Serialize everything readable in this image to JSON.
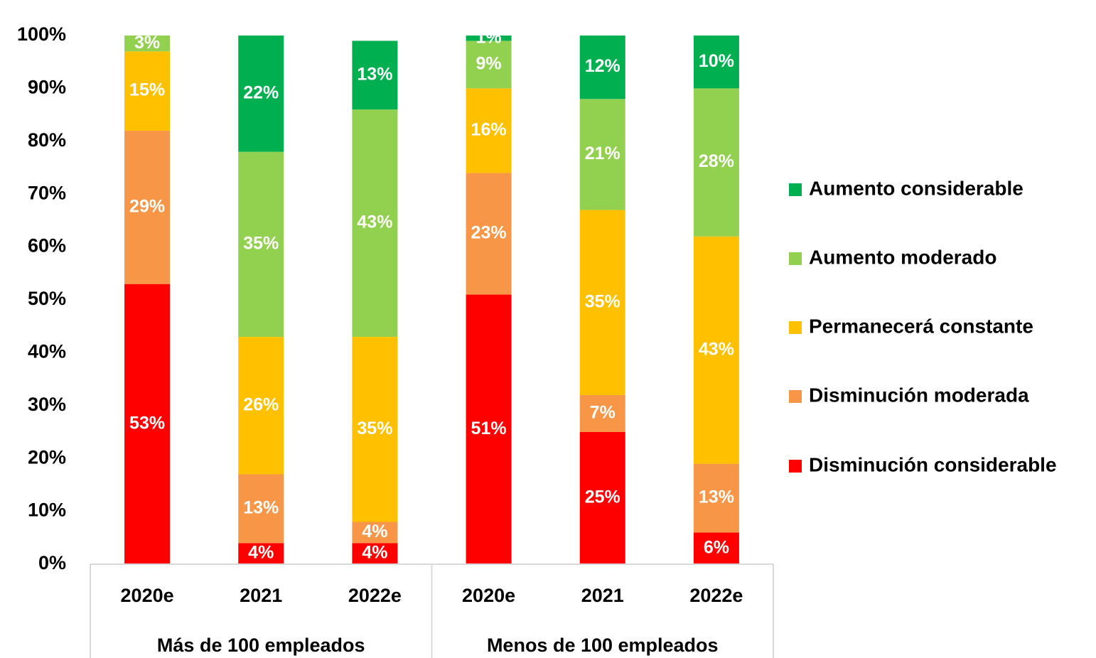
{
  "chart_data": {
    "type": "stacked_bar",
    "categories": [
      "2020e",
      "2021",
      "2022e",
      "2020e",
      "2021",
      "2022e"
    ],
    "groups": [
      "Más de 100 empleados",
      "Menos de 100 empleados"
    ],
    "series": [
      {
        "name": "Disminución considerable",
        "color": "#ff0000",
        "values": [
          53,
          4,
          4,
          51,
          25,
          6
        ],
        "value_labels": [
          "53%",
          "4%",
          "4%",
          "51%",
          "25%",
          "6%"
        ]
      },
      {
        "name": "Disminución moderada",
        "color": "#f79646",
        "values": [
          29,
          13,
          4,
          23,
          7,
          13
        ],
        "value_labels": [
          "29%",
          "13%",
          "4%",
          "23%",
          "7%",
          "13%"
        ]
      },
      {
        "name": "Permanecerá constante",
        "color": "#ffc000",
        "values": [
          15,
          26,
          35,
          16,
          35,
          43
        ],
        "value_labels": [
          "15%",
          "26%",
          "35%",
          "16%",
          "35%",
          "43%"
        ]
      },
      {
        "name": "Aumento moderado",
        "color": "#92d050",
        "values": [
          3,
          35,
          43,
          9,
          21,
          28
        ],
        "value_labels": [
          "3%",
          "35%",
          "43%",
          "9%",
          "21%",
          "28%"
        ]
      },
      {
        "name": "Aumento considerable",
        "color": "#00b050",
        "values": [
          0,
          22,
          13,
          1,
          12,
          10
        ],
        "value_labels": [
          null,
          "22%",
          "13%",
          "1%",
          "12%",
          "10%"
        ]
      }
    ],
    "ylim": [
      0,
      100
    ],
    "yticks": [
      {
        "value": 0,
        "label": "0%"
      },
      {
        "value": 10,
        "label": "10%"
      },
      {
        "value": 20,
        "label": "20%"
      },
      {
        "value": 30,
        "label": "30%"
      },
      {
        "value": 40,
        "label": "40%"
      },
      {
        "value": 50,
        "label": "50%"
      },
      {
        "value": 60,
        "label": "60%"
      },
      {
        "value": 70,
        "label": "70%"
      },
      {
        "value": 80,
        "label": "80%"
      },
      {
        "value": 90,
        "label": "90%"
      },
      {
        "value": 100,
        "label": "100%"
      }
    ],
    "legend": "right",
    "grid": false
  }
}
